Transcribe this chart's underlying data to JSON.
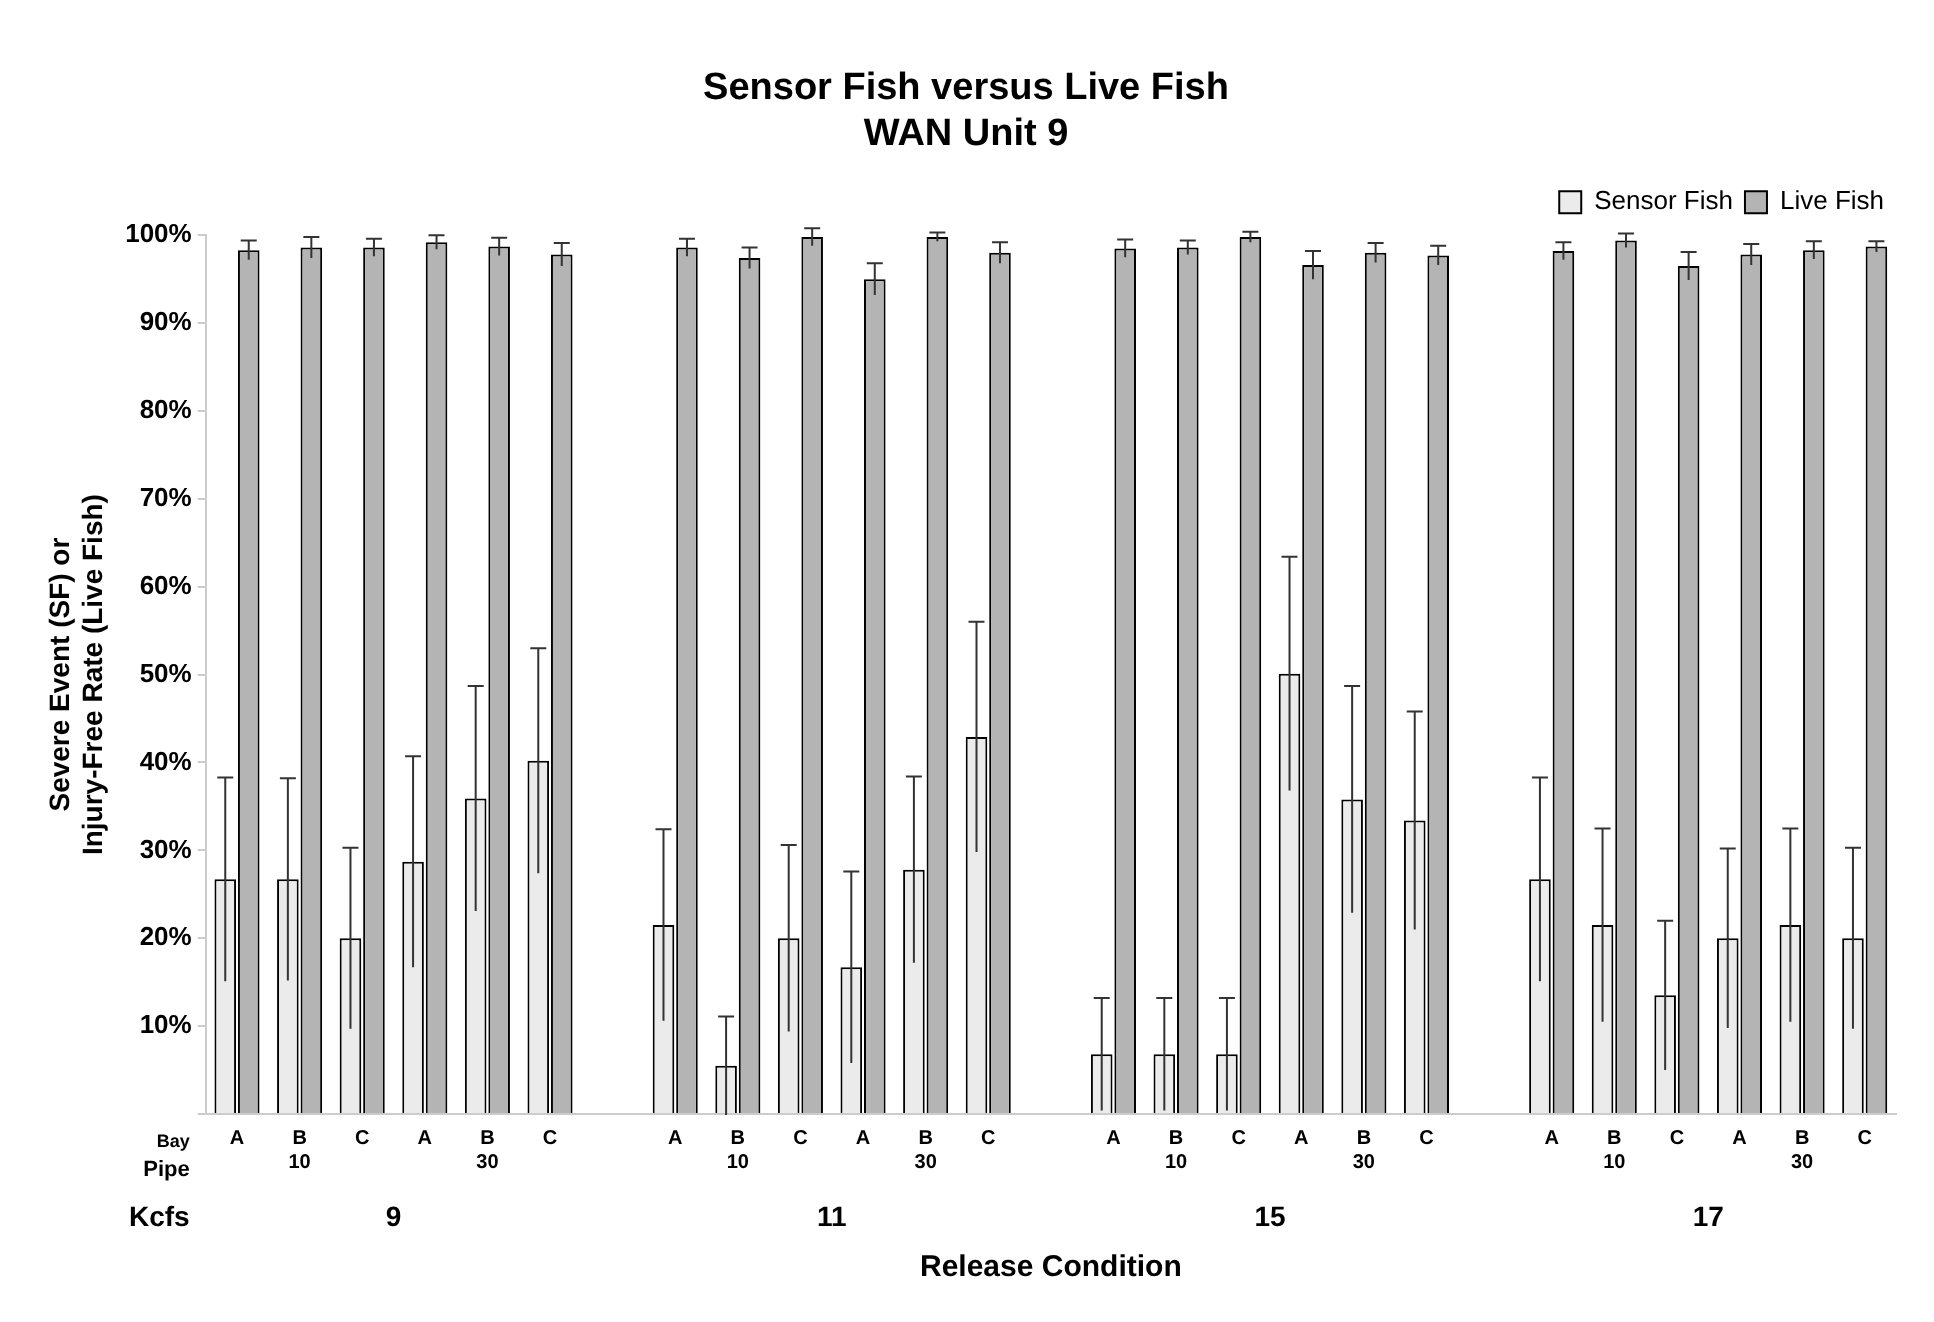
{
  "chart_data": {
    "type": "bar",
    "title": "Sensor Fish versus Live Fish\nWAN Unit 9",
    "xlabel": "Release Condition",
    "ylabel": "Severe Event (SF) or\nInjury-Free Rate (Live Fish)",
    "categories": [
      "A",
      "B\n10",
      "C",
      "A",
      "B\n30",
      "C",
      null,
      "A",
      "B\n10",
      "C",
      "A",
      "B\n30",
      "C",
      null,
      "A",
      "B\n10",
      "C",
      "A",
      "B\n30",
      "C",
      null,
      "A",
      "B\n10",
      "C",
      "A",
      "B\n30",
      "C"
    ],
    "series": [
      {
        "name": "Sensor Fish",
        "color": "#ebebeb",
        "values": [
          26.7,
          26.7,
          20.0,
          28.7,
          35.9,
          40.2,
          null,
          21.5,
          5.5,
          20.0,
          16.7,
          27.8,
          42.9,
          null,
          6.8,
          6.8,
          6.8,
          50.1,
          35.8,
          33.4,
          null,
          26.7,
          21.5,
          13.5,
          20.0,
          21.5,
          20.0
        ],
        "errors": [
          11.6,
          11.5,
          10.3,
          12.0,
          12.8,
          12.8,
          null,
          10.9,
          5.6,
          10.6,
          10.9,
          10.6,
          13.1,
          null,
          6.4,
          6.4,
          6.4,
          13.3,
          12.9,
          12.4,
          null,
          11.6,
          11.0,
          8.5,
          10.2,
          11.0,
          10.3
        ]
      },
      {
        "name": "Live Fish",
        "color": "#b4b4b4",
        "values": [
          98.3,
          98.6,
          98.6,
          99.2,
          98.7,
          97.8,
          null,
          98.6,
          97.4,
          99.8,
          95.0,
          99.8,
          98.0,
          null,
          98.5,
          98.6,
          99.8,
          96.6,
          98.0,
          97.7,
          null,
          98.2,
          99.4,
          96.5,
          97.8,
          98.3,
          98.7
        ],
        "errors": [
          1.1,
          1.2,
          1.0,
          0.8,
          1.0,
          1.3,
          null,
          1.0,
          1.2,
          1.0,
          1.8,
          0.5,
          1.2,
          null,
          1.0,
          0.8,
          0.6,
          1.6,
          1.1,
          1.1,
          null,
          1.0,
          0.8,
          1.6,
          1.2,
          1.0,
          0.6
        ]
      }
    ],
    "ylim": [
      0,
      100
    ],
    "yticks": [
      {
        "value": 0,
        "label": null
      },
      {
        "value": 10,
        "label": "10%"
      },
      {
        "value": 20,
        "label": "20%"
      },
      {
        "value": 30,
        "label": "30%"
      },
      {
        "value": 40,
        "label": "40%"
      },
      {
        "value": 50,
        "label": "50%"
      },
      {
        "value": 60,
        "label": "60%"
      },
      {
        "value": 70,
        "label": "70%"
      },
      {
        "value": 80,
        "label": "80%"
      },
      {
        "value": 90,
        "label": "90%"
      },
      {
        "value": 100,
        "label": "100%"
      }
    ],
    "annotations": [
      "Bay",
      "Pipe",
      "Kcfs",
      "9",
      "11",
      "15",
      "17"
    ],
    "grid": false,
    "legend": "top right"
  }
}
